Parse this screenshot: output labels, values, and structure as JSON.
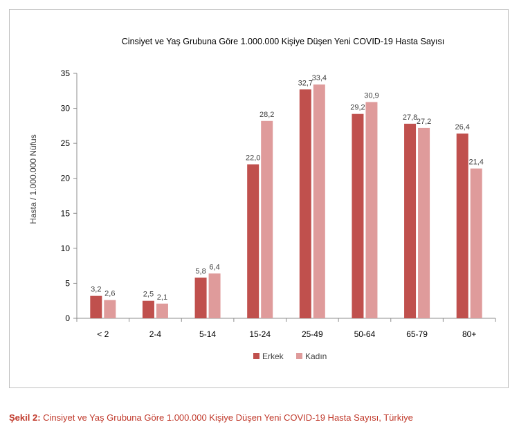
{
  "chart_data": {
    "type": "bar",
    "title": "Cinsiyet ve Yaş Grubuna Göre 1.000.000 Kişiye Düşen Yeni COVID-19 Hasta Sayısı",
    "ylabel": "Hasta / 1.000.000 Nüfus",
    "xlabel": "",
    "ylim": [
      0,
      35
    ],
    "yticks": [
      0,
      5,
      10,
      15,
      20,
      25,
      30,
      35
    ],
    "categories": [
      "< 2",
      "2-4",
      "5-14",
      "15-24",
      "25-49",
      "50-64",
      "65-79",
      "80+"
    ],
    "series": [
      {
        "name": "Erkek",
        "color": "#c0504d",
        "values": [
          3.2,
          2.5,
          5.8,
          22.0,
          32.7,
          29.2,
          27.8,
          26.4
        ],
        "labels": [
          "3,2",
          "2,5",
          "5,8",
          "22,0",
          "32,7",
          "29,2",
          "27,8",
          "26,4"
        ]
      },
      {
        "name": "Kadın",
        "color": "#df9b9b",
        "values": [
          2.6,
          2.1,
          6.4,
          28.2,
          33.4,
          30.9,
          27.2,
          21.4
        ],
        "labels": [
          "2,6",
          "2,1",
          "6,4",
          "28,2",
          "33,4",
          "30,9",
          "27,2",
          "21,4"
        ]
      }
    ],
    "legend_position": "bottom",
    "grid": false
  },
  "caption": {
    "lead": "Şekil 2:",
    "text": " Cinsiyet ve Yaş Grubuna Göre 1.000.000 Kişiye Düşen Yeni COVID-19 Hasta Sayısı, Türkiye"
  }
}
